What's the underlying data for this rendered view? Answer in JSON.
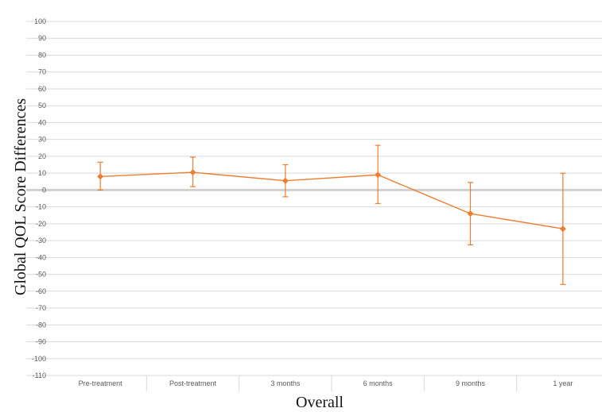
{
  "chart_data": {
    "type": "line",
    "title": "",
    "xlabel": "Overall",
    "ylabel": "Global QOL Score Differences",
    "categories": [
      "Pre-treatment",
      "Post-treatment",
      "3 months",
      "6 months",
      "9 months",
      "1 year"
    ],
    "series": [
      {
        "values": [
          8,
          10.5,
          5.5,
          9,
          -14,
          -23
        ],
        "error_upper": [
          16.5,
          19.5,
          15,
          26.5,
          4.5,
          10
        ],
        "error_lower": [
          0,
          2,
          -4,
          -8,
          -32.5,
          -56
        ]
      }
    ],
    "ylim": [
      -110,
      100
    ],
    "yticks": [
      100,
      90,
      80,
      70,
      60,
      50,
      40,
      30,
      20,
      10,
      0,
      -10,
      -20,
      -30,
      -40,
      -50,
      -60,
      -70,
      -80,
      -90,
      -100,
      -110
    ],
    "grid": true,
    "legend": "none",
    "colors": {
      "series": "#ED7D31",
      "grid": "#D9D9D9",
      "zero_line": "#D0D0D0",
      "tick_text": "#595959",
      "axis_title": "#111111"
    }
  }
}
